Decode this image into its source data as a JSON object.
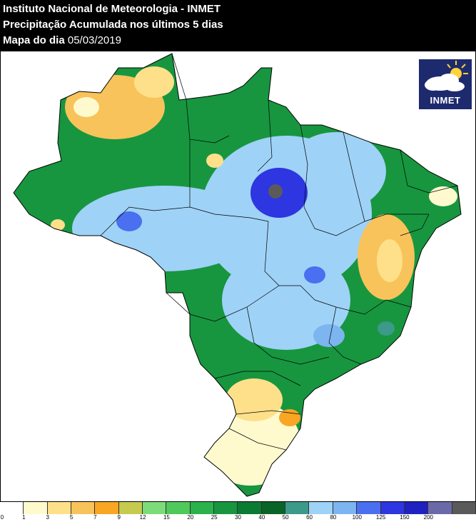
{
  "header": {
    "line1": "Instituto Nacional de Meteorologia - INMET",
    "line2": "Precipitação Acumulada nos últimos 5 dias",
    "line3_prefix": "Mapa do dia",
    "date": "05/03/2019"
  },
  "logo": {
    "text": "INMET",
    "icon": "sun-cloud-icon"
  },
  "legend": {
    "labels": [
      "0",
      "1",
      "3",
      "5",
      "7",
      "9",
      "12",
      "15",
      "20",
      "25",
      "30",
      "40",
      "50",
      "60",
      "80",
      "100",
      "125",
      "150",
      "200"
    ],
    "colors": [
      "#ffffff",
      "#fffacd",
      "#ffe08a",
      "#f8c35a",
      "#f8a623",
      "#c6ca4f",
      "#7ddc7a",
      "#4ec95a",
      "#2bb24c",
      "#17963f",
      "#0a7b33",
      "#0b6427",
      "#3b9a8a",
      "#9fd2f7",
      "#7cb5f0",
      "#4a6ff0",
      "#2d36e0",
      "#1f22c0",
      "#6a6aa8",
      "#5a5a5a"
    ]
  }
}
